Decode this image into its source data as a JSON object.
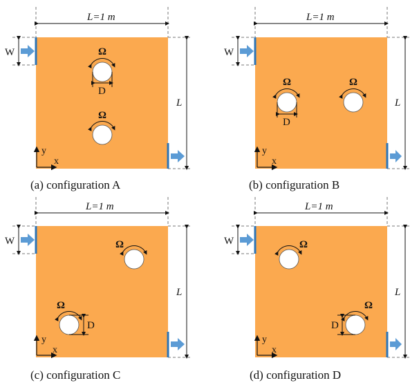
{
  "colors": {
    "domain_fill": "#FBA94F",
    "cylinder_fill": "#FFFFFF",
    "port_color": "#2E75B6",
    "arrow_color": "#5B9BD5",
    "dim_color": "#111111"
  },
  "labels": {
    "width_dim_prefix": "L",
    "width_dim_suffix": "=1 m",
    "inlet_width": "W",
    "height_dim": "L",
    "rotation": "Ω",
    "diameter": "D",
    "axis_y": "y",
    "axis_x": "x"
  },
  "panels": [
    {
      "id": "a",
      "caption": "(a) configuration A",
      "cylinders": [
        {
          "omega": "Ω",
          "diameter": "D",
          "d_style": "below"
        },
        {
          "omega": "Ω",
          "diameter": "",
          "d_style": "none"
        }
      ]
    },
    {
      "id": "b",
      "caption": "(b) configuration B",
      "cylinders": [
        {
          "omega": "Ω",
          "diameter": "D",
          "d_style": "below"
        },
        {
          "omega": "Ω",
          "diameter": "",
          "d_style": "none"
        }
      ]
    },
    {
      "id": "c",
      "caption": "(c) configuration C",
      "cylinders": [
        {
          "omega": "Ω",
          "diameter": "",
          "d_style": "none"
        },
        {
          "omega": "Ω",
          "diameter": "D",
          "d_style": "right"
        }
      ]
    },
    {
      "id": "d",
      "caption": "(d) configuration D",
      "cylinders": [
        {
          "omega": "Ω",
          "diameter": "",
          "d_style": "none"
        },
        {
          "omega": "Ω",
          "diameter": "D",
          "d_style": "left"
        }
      ]
    }
  ]
}
